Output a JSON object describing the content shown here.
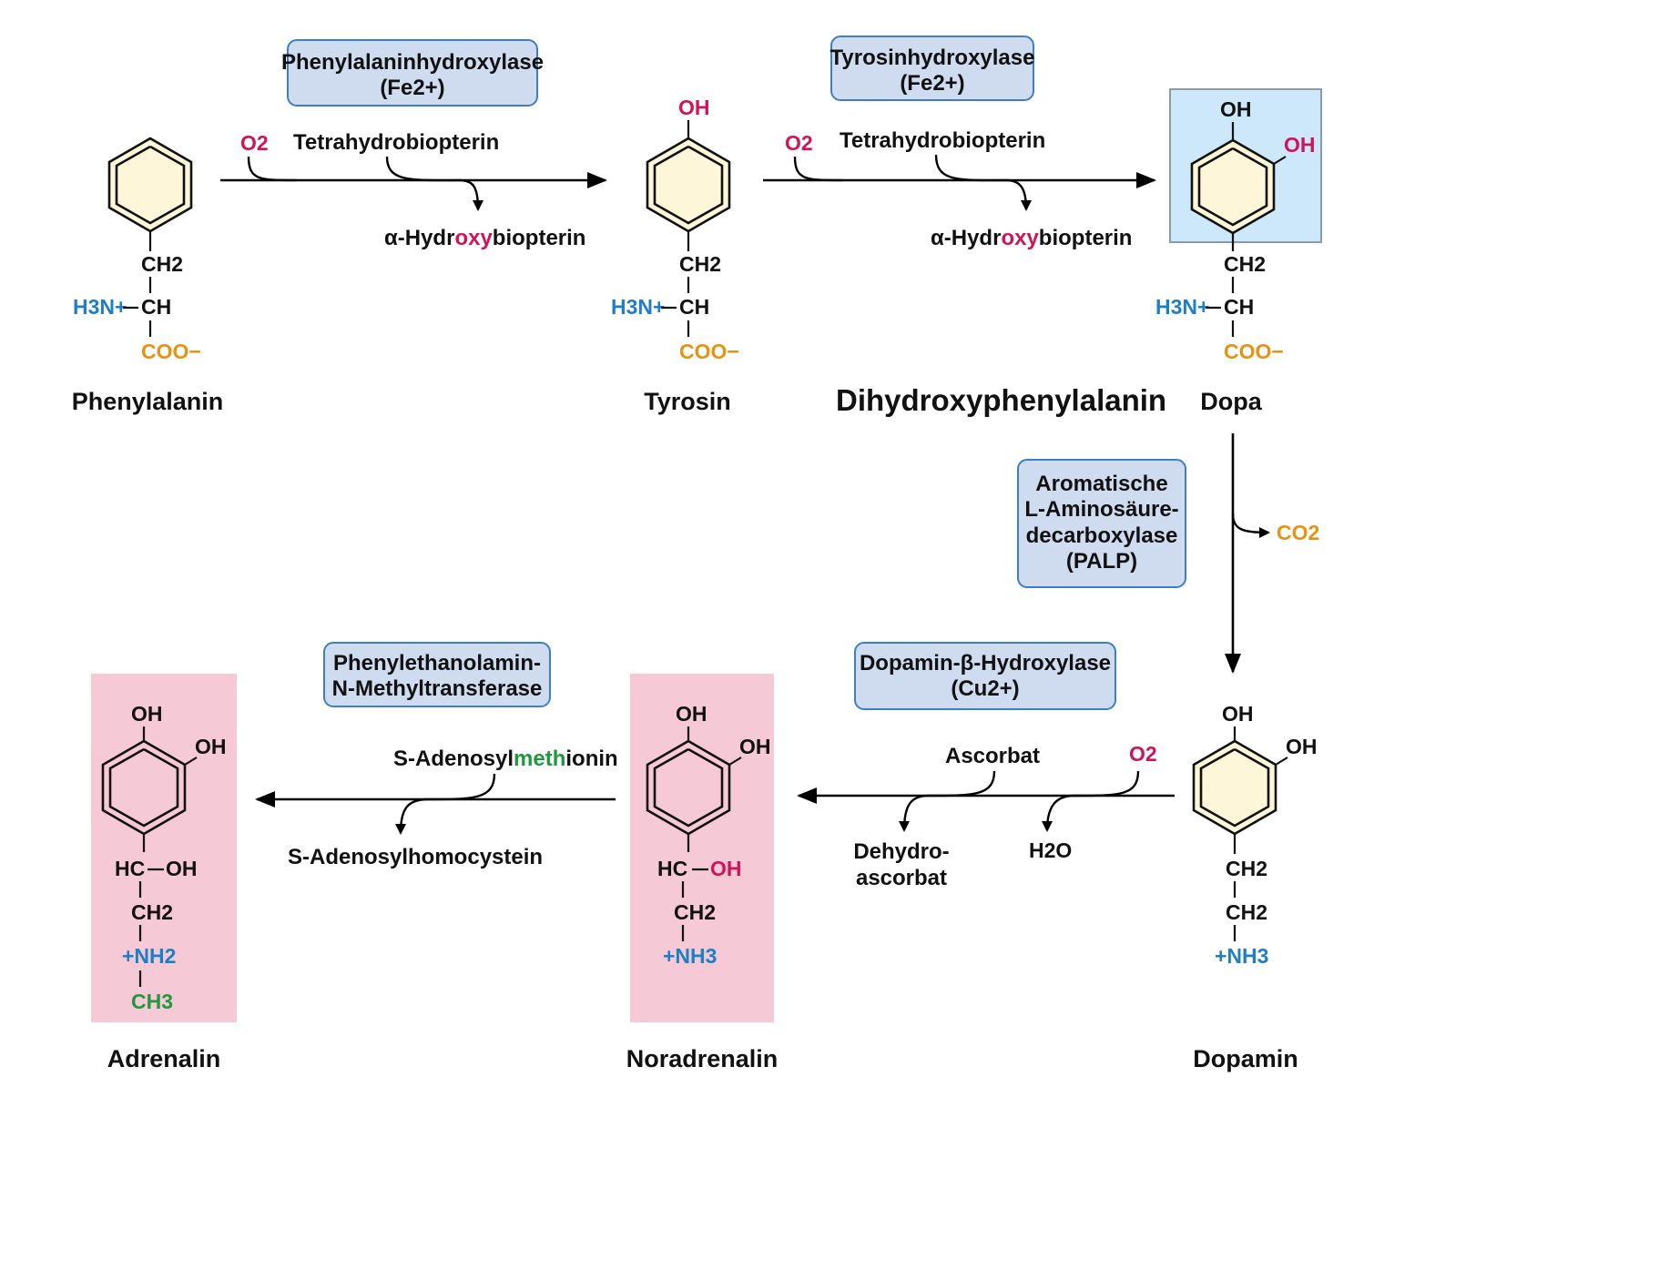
{
  "enzymes": {
    "pah": {
      "line1": "Phenylalaninhydroxylase",
      "line2": "(Fe2+)"
    },
    "th": {
      "line1": "Tyrosinhydroxylase",
      "line2": "(Fe2+)"
    },
    "aadc": {
      "line1": "Aromatische",
      "line2": "L-Aminosäure-",
      "line3": "decarboxylase",
      "line4": "(PALP)"
    },
    "dbh": {
      "line1": "Dopamin-β-Hydroxylase",
      "line2": "(Cu2+)"
    },
    "pnmt": {
      "line1": "Phenylethanolamin-",
      "line2": "N-Methyltransferase"
    }
  },
  "cofactors": {
    "o2": "O2",
    "co2": "CO2",
    "h2o": "H2O",
    "tetrahydrobiopterin": "Tetrahydrobiopterin",
    "hydroxy_pre": "α-Hydr",
    "hydroxy_mid": "oxy",
    "hydroxy_post": "biopterin",
    "ascorbat": "Ascorbat",
    "dehydro1": "Dehydro-",
    "dehydro2": "ascorbat",
    "sam_pre": "S-Adenosyl",
    "sam_mid": "meth",
    "sam_post": "ionin",
    "sah": "S-Adenosylhomocystein"
  },
  "groups": {
    "oh": "OH",
    "ch2": "CH2",
    "ch": "CH",
    "hc": "HC",
    "h3n": "H3N+",
    "coo": "COO−",
    "nh3": "+NH3",
    "nh2": "+NH2",
    "ch3": "CH3"
  },
  "compounds": {
    "phenylalanin": "Phenylalanin",
    "tyrosin": "Tyrosin",
    "dihydroxyphenylalanin": "Dihydroxyphenylalanin",
    "dopa": "Dopa",
    "dopamin": "Dopamin",
    "noradrenalin": "Noradrenalin",
    "adrenalin": "Adrenalin"
  },
  "colors": {
    "oxygen": "#d0145a",
    "nitrogen": "#1e7fc6",
    "carboxylate": "#e89212",
    "methyl": "#1e9a3c",
    "enzyme_box": "#cfdcf0",
    "highlight_dopa": "#cde8fa",
    "highlight_catecholamine": "#f6c9d7"
  }
}
